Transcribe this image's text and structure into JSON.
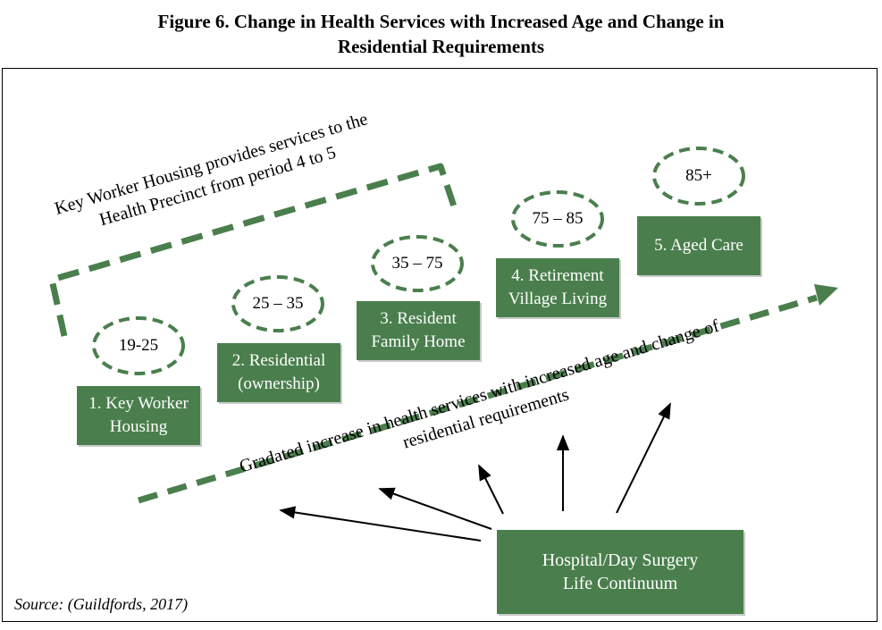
{
  "figure": {
    "title_line1": "Figure 6. Change in Health Services with Increased Age and Change in",
    "title_line2": "Residential Requirements",
    "source": "Source: (Guildfords, 2017)"
  },
  "stages": [
    {
      "age": "19-25",
      "line1": "1. Key Worker",
      "line2": "Housing"
    },
    {
      "age": "25 – 35",
      "line1": "2. Residential",
      "line2": "(ownership)"
    },
    {
      "age": "35 – 75",
      "line1": "3. Resident",
      "line2": "Family Home"
    },
    {
      "age": "75 – 85",
      "line1": "4. Retirement",
      "line2": "Village Living"
    },
    {
      "age": "85+",
      "line1": "5. Aged Care",
      "line2": ""
    }
  ],
  "key_worker_note": {
    "line1": "Key Worker Housing provides services to the",
    "line2": "Health Precinct from period 4 to 5"
  },
  "gradient_note": {
    "line1": "Gradated increase in health services with increased age and change of",
    "line2": "residential requirements"
  },
  "hub": {
    "line1": "Hospital/Day Surgery",
    "line2": "Life Continuum"
  },
  "colors": {
    "box_fill": "#4a7f4d",
    "dashed_stroke": "#4a7f4d"
  }
}
